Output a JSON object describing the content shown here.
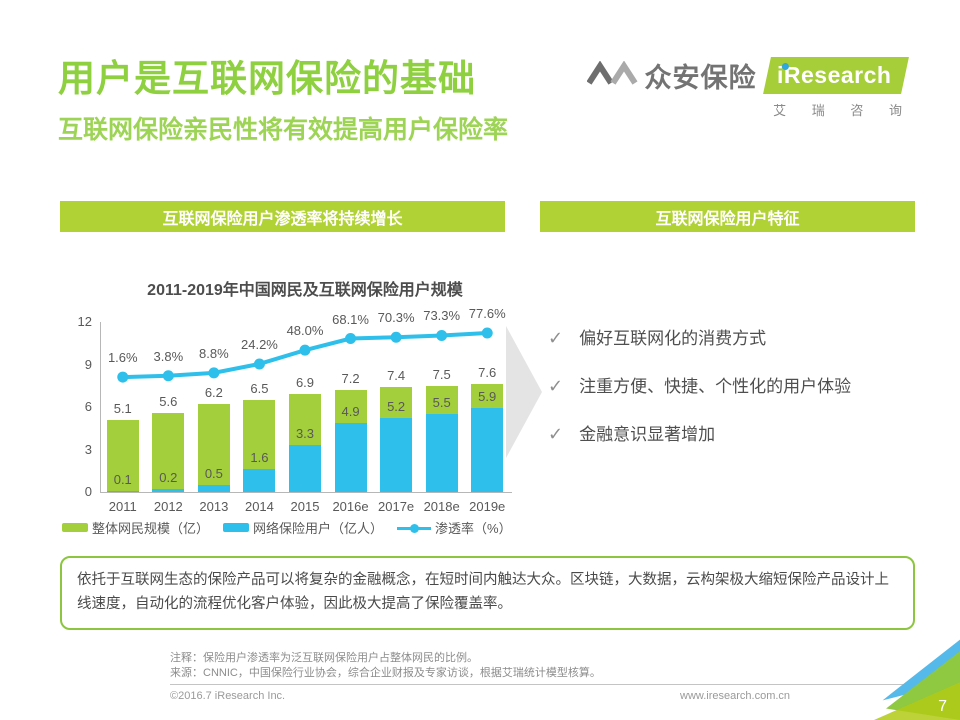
{
  "header": {
    "title": "用户是互联网保险的基础",
    "subtitle": "互联网保险亲民性将有效提高用户保险率",
    "logo": {
      "zhongan_text": "众安保险",
      "iresearch_text": "iResearch",
      "iresearch_subtext": "艾 瑞 咨 询"
    }
  },
  "section_banners": {
    "left": "互联网保险用户渗透率将持续增长",
    "right": "互联网保险用户特征"
  },
  "chart_data": {
    "type": "bar",
    "title": "2011-2019年中国网民及互联网保险用户规模",
    "categories": [
      "2011",
      "2012",
      "2013",
      "2014",
      "2015",
      "2016e",
      "2017e",
      "2018e",
      "2019e"
    ],
    "series": [
      {
        "name": "整体网民规模（亿）",
        "type": "bar",
        "color": "#a3cf3c",
        "values": [
          5.1,
          5.6,
          6.2,
          6.5,
          6.9,
          7.2,
          7.4,
          7.5,
          7.6
        ]
      },
      {
        "name": "网络保险用户（亿人）",
        "type": "bar",
        "color": "#2ec0ea",
        "values": [
          0.1,
          0.2,
          0.5,
          1.6,
          3.3,
          4.9,
          5.2,
          5.5,
          5.9
        ]
      },
      {
        "name": "渗透率（%）",
        "type": "line",
        "color": "#2ec0ea",
        "values": [
          1.6,
          3.8,
          8.8,
          24.2,
          48.0,
          68.1,
          70.3,
          73.3,
          77.6
        ],
        "value_labels": [
          "1.6%",
          "3.8%",
          "8.8%",
          "24.2%",
          "48.0%",
          "68.1%",
          "70.3%",
          "73.3%",
          "77.6%"
        ]
      }
    ],
    "y_axis_ticks": [
      0,
      3,
      6,
      9,
      12
    ],
    "y_max": 12,
    "bars_overlaid": true,
    "grid": false,
    "legend_position": "bottom"
  },
  "features": {
    "check_icon": "✓",
    "items": [
      "偏好互联网化的消费方式",
      "注重方便、快捷、个性化的用户体验",
      "金融意识显著增加"
    ]
  },
  "summary": "依托于互联网生态的保险产品可以将复杂的金融概念，在短时间内触达大众。区块链，大数据，云构架极大缩短保险产品设计上线速度，自动化的流程优化客户体验，因此极大提高了保险覆盖率。",
  "notes": {
    "annotation": "注释：保险用户渗透率为泛互联网保险用户占整体网民的比例。",
    "source": "来源：CNNIC，中国保险行业协会，综合企业财报及专家访谈，根据艾瑞统计模型核算。"
  },
  "footer": {
    "copyright": "©2016.7 iResearch Inc.",
    "website": "www.iresearch.com.cn",
    "page_number": "7"
  }
}
